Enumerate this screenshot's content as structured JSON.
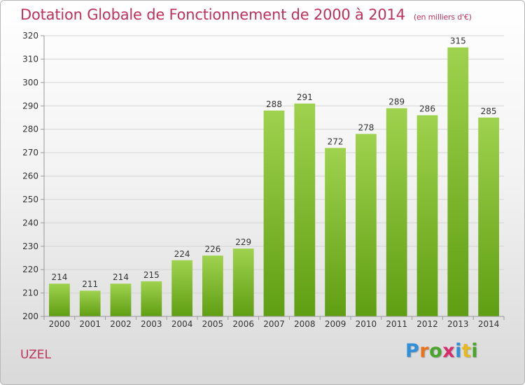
{
  "header": {
    "title": "Dotation Globale de Fonctionnement de 2000 à 2014",
    "unit": "(en milliers d'€)"
  },
  "footer": {
    "place": "UZEL",
    "logo": {
      "letters": [
        "P",
        "r",
        "o",
        "x",
        "i",
        "t",
        "i"
      ],
      "colors": [
        "#2f8fd8",
        "#e8731c",
        "#4aa52c",
        "#d92b6b",
        "#2f8fd8",
        "#e8b81c",
        "#4aa52c"
      ]
    }
  },
  "chart_data": {
    "type": "bar",
    "categories": [
      "2000",
      "2001",
      "2002",
      "2003",
      "2004",
      "2005",
      "2006",
      "2007",
      "2008",
      "2009",
      "2010",
      "2011",
      "2012",
      "2013",
      "2014"
    ],
    "values": [
      214,
      211,
      214,
      215,
      224,
      226,
      229,
      288,
      291,
      272,
      278,
      289,
      286,
      315,
      285
    ],
    "title": "Dotation Globale de Fonctionnement de 2000 à 2014",
    "subtitle": "(en milliers d'€)",
    "xlabel": "",
    "ylabel": "",
    "ylim": [
      200,
      320
    ],
    "yticks": [
      200,
      210,
      220,
      230,
      240,
      250,
      260,
      270,
      280,
      290,
      300,
      310,
      320
    ],
    "grid": true,
    "legend": "none",
    "colors": {
      "bar_light": "#9fd24e",
      "bar_dark": "#5f9e12",
      "grid": "#d4d4d4",
      "axis": "#999999",
      "text": "#333333"
    }
  }
}
